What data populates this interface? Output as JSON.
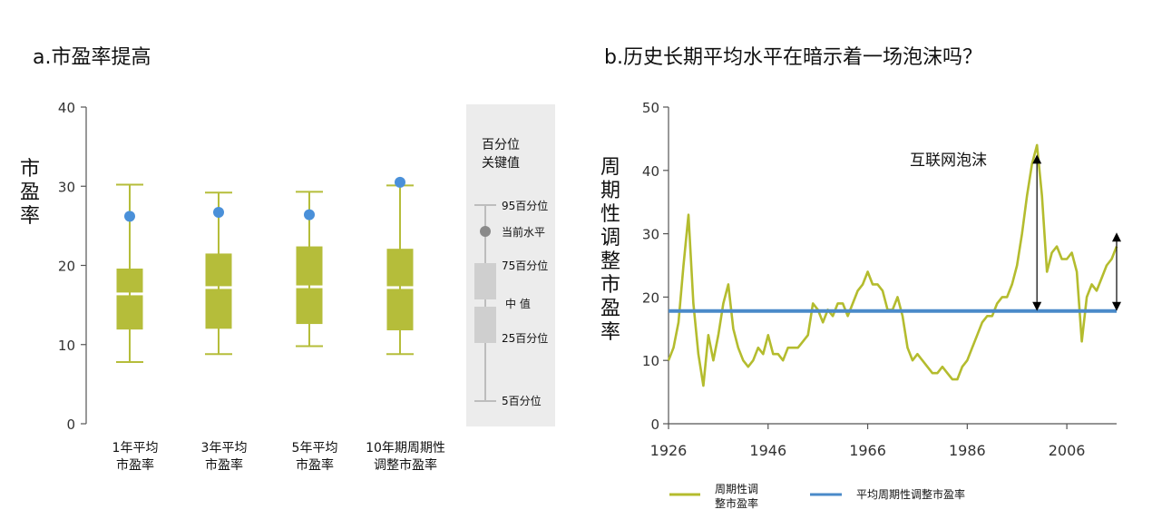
{
  "colors": {
    "box_fill": "#b5bd3a",
    "box_stroke": "#a8b030",
    "current_dot": "#4a90d9",
    "legend_gray": "#cfcfcf",
    "legend_dot": "#8a8a8a",
    "legend_bg": "#ececec",
    "line_green": "#b4bc2e",
    "line_blue": "#4a8ac9",
    "arrow": "#000000",
    "axis": "#555555"
  },
  "left": {
    "title": "a.市盈率提高",
    "ylabel": "市盈率",
    "legend": {
      "title": "百分位\n关键值",
      "p95": "95百分位",
      "current": "当前水平",
      "p75": "75百分位",
      "median": "中 值",
      "p25": "25百分位",
      "p5": "5百分位"
    }
  },
  "right": {
    "title": "b.历史长期平均水平在暗示着一场泡沫吗？",
    "ylabel": "周期性调整市盈率",
    "annotation": "互联网泡沫",
    "legend": {
      "series1": "周期性调\n整市盈率",
      "series2": "平均周期性调整市盈率"
    }
  },
  "chart_data": [
    {
      "type": "box",
      "title": "a.市盈率提高",
      "ylabel": "市盈率",
      "ylim": [
        0,
        40
      ],
      "yticks": [
        0,
        10,
        20,
        30,
        40
      ],
      "categories": [
        "1年平均\n市盈率",
        "3年平均\n市盈率",
        "5年平均\n市盈率",
        "10年期周期性\n调整市盈率"
      ],
      "boxes": [
        {
          "p5": 7.8,
          "p25": 11.9,
          "median": 16.4,
          "p75": 19.6,
          "p95": 30.2,
          "current": 26.2
        },
        {
          "p5": 8.8,
          "p25": 12.0,
          "median": 17.2,
          "p75": 21.5,
          "p95": 29.2,
          "current": 26.7
        },
        {
          "p5": 9.8,
          "p25": 12.6,
          "median": 17.3,
          "p75": 22.4,
          "p95": 29.3,
          "current": 26.4
        },
        {
          "p5": 8.8,
          "p25": 11.8,
          "median": 17.2,
          "p75": 22.1,
          "p95": 30.1,
          "current": 30.5
        }
      ]
    },
    {
      "type": "line",
      "title": "b.历史长期平均水平在暗示着一场泡沫吗？",
      "ylabel": "周期性调整市盈率",
      "xlim": [
        1926,
        2016
      ],
      "ylim": [
        0,
        50
      ],
      "xticks": [
        1926,
        1946,
        1966,
        1986,
        2006
      ],
      "yticks": [
        0,
        10,
        20,
        30,
        40,
        50
      ],
      "series": [
        {
          "name": "周期性调\n整市盈率",
          "x": [
            1926,
            1927,
            1928,
            1929,
            1930,
            1931,
            1932,
            1933,
            1934,
            1935,
            1936,
            1937,
            1938,
            1939,
            1940,
            1941,
            1942,
            1943,
            1944,
            1945,
            1946,
            1947,
            1948,
            1949,
            1950,
            1951,
            1952,
            1953,
            1954,
            1955,
            1956,
            1957,
            1958,
            1959,
            1960,
            1961,
            1962,
            1963,
            1964,
            1965,
            1966,
            1967,
            1968,
            1969,
            1970,
            1971,
            1972,
            1973,
            1974,
            1975,
            1976,
            1977,
            1978,
            1979,
            1980,
            1981,
            1982,
            1983,
            1984,
            1985,
            1986,
            1987,
            1988,
            1989,
            1990,
            1991,
            1992,
            1993,
            1994,
            1995,
            1996,
            1997,
            1998,
            1999,
            2000,
            2001,
            2002,
            2003,
            2004,
            2005,
            2006,
            2007,
            2008,
            2009,
            2010,
            2011,
            2012,
            2013,
            2014,
            2015,
            2016
          ],
          "values": [
            10,
            12,
            16,
            25,
            33,
            19,
            11,
            6,
            14,
            10,
            14,
            19,
            22,
            15,
            12,
            10,
            9,
            10,
            12,
            11,
            14,
            11,
            11,
            10,
            12,
            12,
            12,
            13,
            14,
            19,
            18,
            16,
            18,
            17,
            19,
            19,
            17,
            19,
            21,
            22,
            24,
            22,
            22,
            21,
            18,
            18,
            20,
            17,
            12,
            10,
            11,
            10,
            9,
            8,
            8,
            9,
            8,
            7,
            7,
            9,
            10,
            12,
            14,
            16,
            17,
            17,
            19,
            20,
            20,
            22,
            25,
            30,
            36,
            41,
            44,
            36,
            24,
            27,
            28,
            26,
            26,
            27,
            24,
            13,
            20,
            22,
            21,
            23,
            25,
            26,
            28
          ]
        },
        {
          "name": "平均周期性调整市盈率",
          "x": [
            1926,
            2016
          ],
          "values": [
            17.8,
            17.8
          ]
        }
      ],
      "annotations": [
        "互联网泡沫"
      ]
    }
  ]
}
